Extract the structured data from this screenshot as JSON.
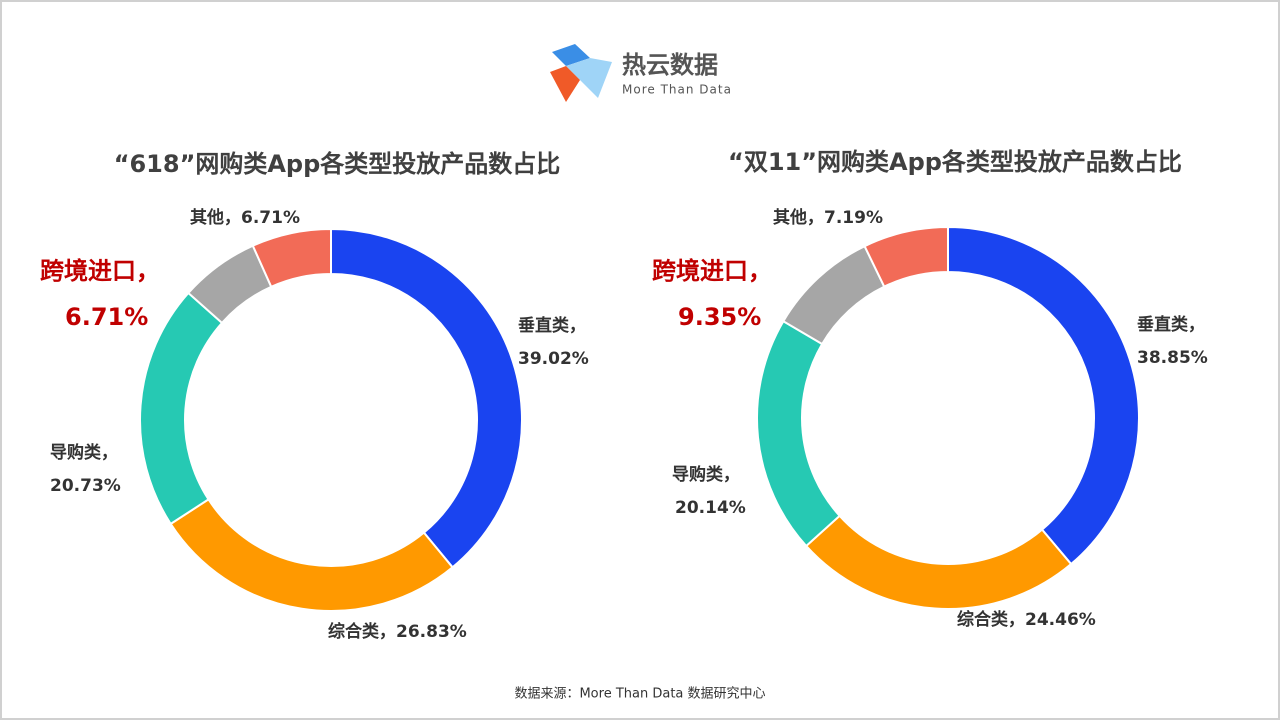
{
  "header": {
    "brand": "热云数据",
    "tagline": "More Than Data"
  },
  "chart_data": [
    {
      "type": "pie",
      "title": "“618”网购类App各类型投放产品数占比",
      "categories": [
        "垂直类，",
        "综合类，",
        "导购类，",
        "跨境进口，",
        "其他，"
      ],
      "values": [
        39.02,
        26.83,
        20.73,
        6.71,
        6.71
      ],
      "value_labels": [
        "39.02%",
        "26.83%",
        "20.73%",
        "6.71%",
        "6.71%"
      ],
      "colors": [
        "#1a44f0",
        "#ff9900",
        "#26c9b3",
        "#a6a6a6",
        "#f26b57"
      ]
    },
    {
      "type": "pie",
      "title": "“双11”网购类App各类型投放产品数占比",
      "categories": [
        "垂直类，",
        "综合类，",
        "导购类，",
        "跨境进口，",
        "其他，"
      ],
      "values": [
        38.85,
        24.46,
        20.14,
        9.35,
        7.19
      ],
      "value_labels": [
        "38.85%",
        "24.46%",
        "20.14%",
        "9.35%",
        "7.19%"
      ],
      "colors": [
        "#1a44f0",
        "#ff9900",
        "#26c9b3",
        "#a6a6a6",
        "#f26b57"
      ]
    }
  ],
  "footer": {
    "source": "数据来源：More Than Data 数据研究中心"
  }
}
